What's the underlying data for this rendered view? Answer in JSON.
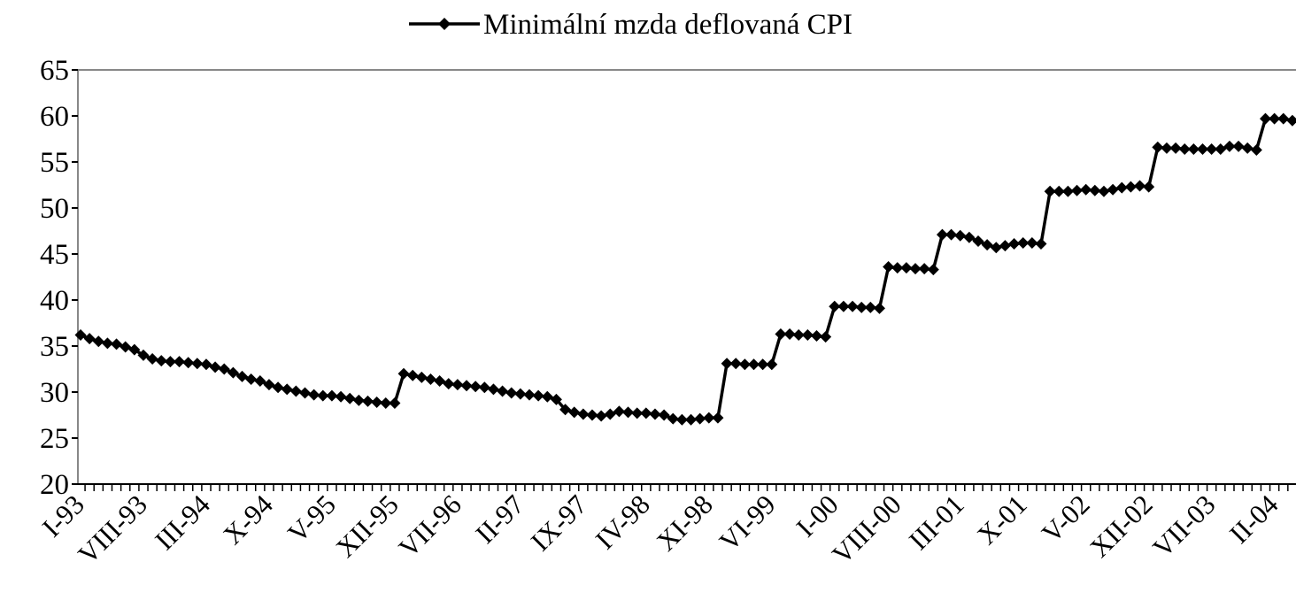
{
  "chart_data": {
    "type": "line",
    "categories": [
      "I-93",
      null,
      null,
      null,
      null,
      null,
      null,
      "VIII-93",
      null,
      null,
      null,
      null,
      null,
      null,
      "III-94",
      null,
      null,
      null,
      null,
      null,
      null,
      "X-94",
      null,
      null,
      null,
      null,
      null,
      null,
      "V-95",
      null,
      null,
      null,
      null,
      null,
      null,
      "XII-95",
      null,
      null,
      null,
      null,
      null,
      null,
      "VII-96",
      null,
      null,
      null,
      null,
      null,
      null,
      "II-97",
      null,
      null,
      null,
      null,
      null,
      null,
      "IX-97",
      null,
      null,
      null,
      null,
      null,
      null,
      "IV-98",
      null,
      null,
      null,
      null,
      null,
      null,
      "XI-98",
      null,
      null,
      null,
      null,
      null,
      null,
      "VI-99",
      null,
      null,
      null,
      null,
      null,
      null,
      "I-00",
      null,
      null,
      null,
      null,
      null,
      null,
      "VIII-00",
      null,
      null,
      null,
      null,
      null,
      null,
      "III-01",
      null,
      null,
      null,
      null,
      null,
      null,
      "X-01",
      null,
      null,
      null,
      null,
      null,
      null,
      "V-02",
      null,
      null,
      null,
      null,
      null,
      null,
      "XII-02",
      null,
      null,
      null,
      null,
      null,
      null,
      "VII-03",
      null,
      null,
      null,
      null,
      null,
      null,
      "II-04",
      null,
      null
    ],
    "series": [
      {
        "name": "Minimální mzda deflovaná CPI",
        "color": "#000000",
        "values": [
          36.2,
          35.8,
          35.5,
          35.3,
          35.2,
          34.9,
          34.6,
          34.0,
          33.6,
          33.4,
          33.3,
          33.3,
          33.2,
          33.1,
          33.0,
          32.7,
          32.5,
          32.1,
          31.7,
          31.4,
          31.2,
          30.8,
          30.5,
          30.3,
          30.1,
          29.9,
          29.7,
          29.6,
          29.6,
          29.5,
          29.3,
          29.1,
          29.0,
          28.9,
          28.8,
          28.8,
          32.0,
          31.8,
          31.6,
          31.4,
          31.2,
          30.9,
          30.8,
          30.7,
          30.6,
          30.5,
          30.3,
          30.1,
          29.9,
          29.8,
          29.7,
          29.6,
          29.5,
          29.2,
          28.1,
          27.8,
          27.6,
          27.5,
          27.4,
          27.6,
          27.9,
          27.8,
          27.7,
          27.7,
          27.6,
          27.5,
          27.1,
          27.0,
          27.0,
          27.1,
          27.2,
          27.2,
          33.1,
          33.1,
          33.0,
          33.0,
          33.0,
          33.0,
          36.3,
          36.3,
          36.2,
          36.2,
          36.1,
          36.0,
          39.3,
          39.3,
          39.3,
          39.2,
          39.2,
          39.1,
          43.6,
          43.5,
          43.5,
          43.4,
          43.4,
          43.3,
          47.1,
          47.1,
          47.0,
          46.8,
          46.4,
          46.0,
          45.7,
          45.9,
          46.1,
          46.2,
          46.2,
          46.1,
          51.8,
          51.8,
          51.8,
          51.9,
          52.0,
          51.9,
          51.8,
          52.0,
          52.2,
          52.3,
          52.4,
          52.3,
          56.6,
          56.5,
          56.5,
          56.4,
          56.4,
          56.4,
          56.4,
          56.4,
          56.7,
          56.7,
          56.5,
          56.3,
          59.7,
          59.7,
          59.7,
          59.5
        ]
      }
    ],
    "ylim": [
      20,
      65
    ],
    "yticks": [
      20,
      25,
      30,
      35,
      40,
      45,
      50,
      55,
      60,
      65
    ],
    "legend": "top",
    "grid": false
  }
}
